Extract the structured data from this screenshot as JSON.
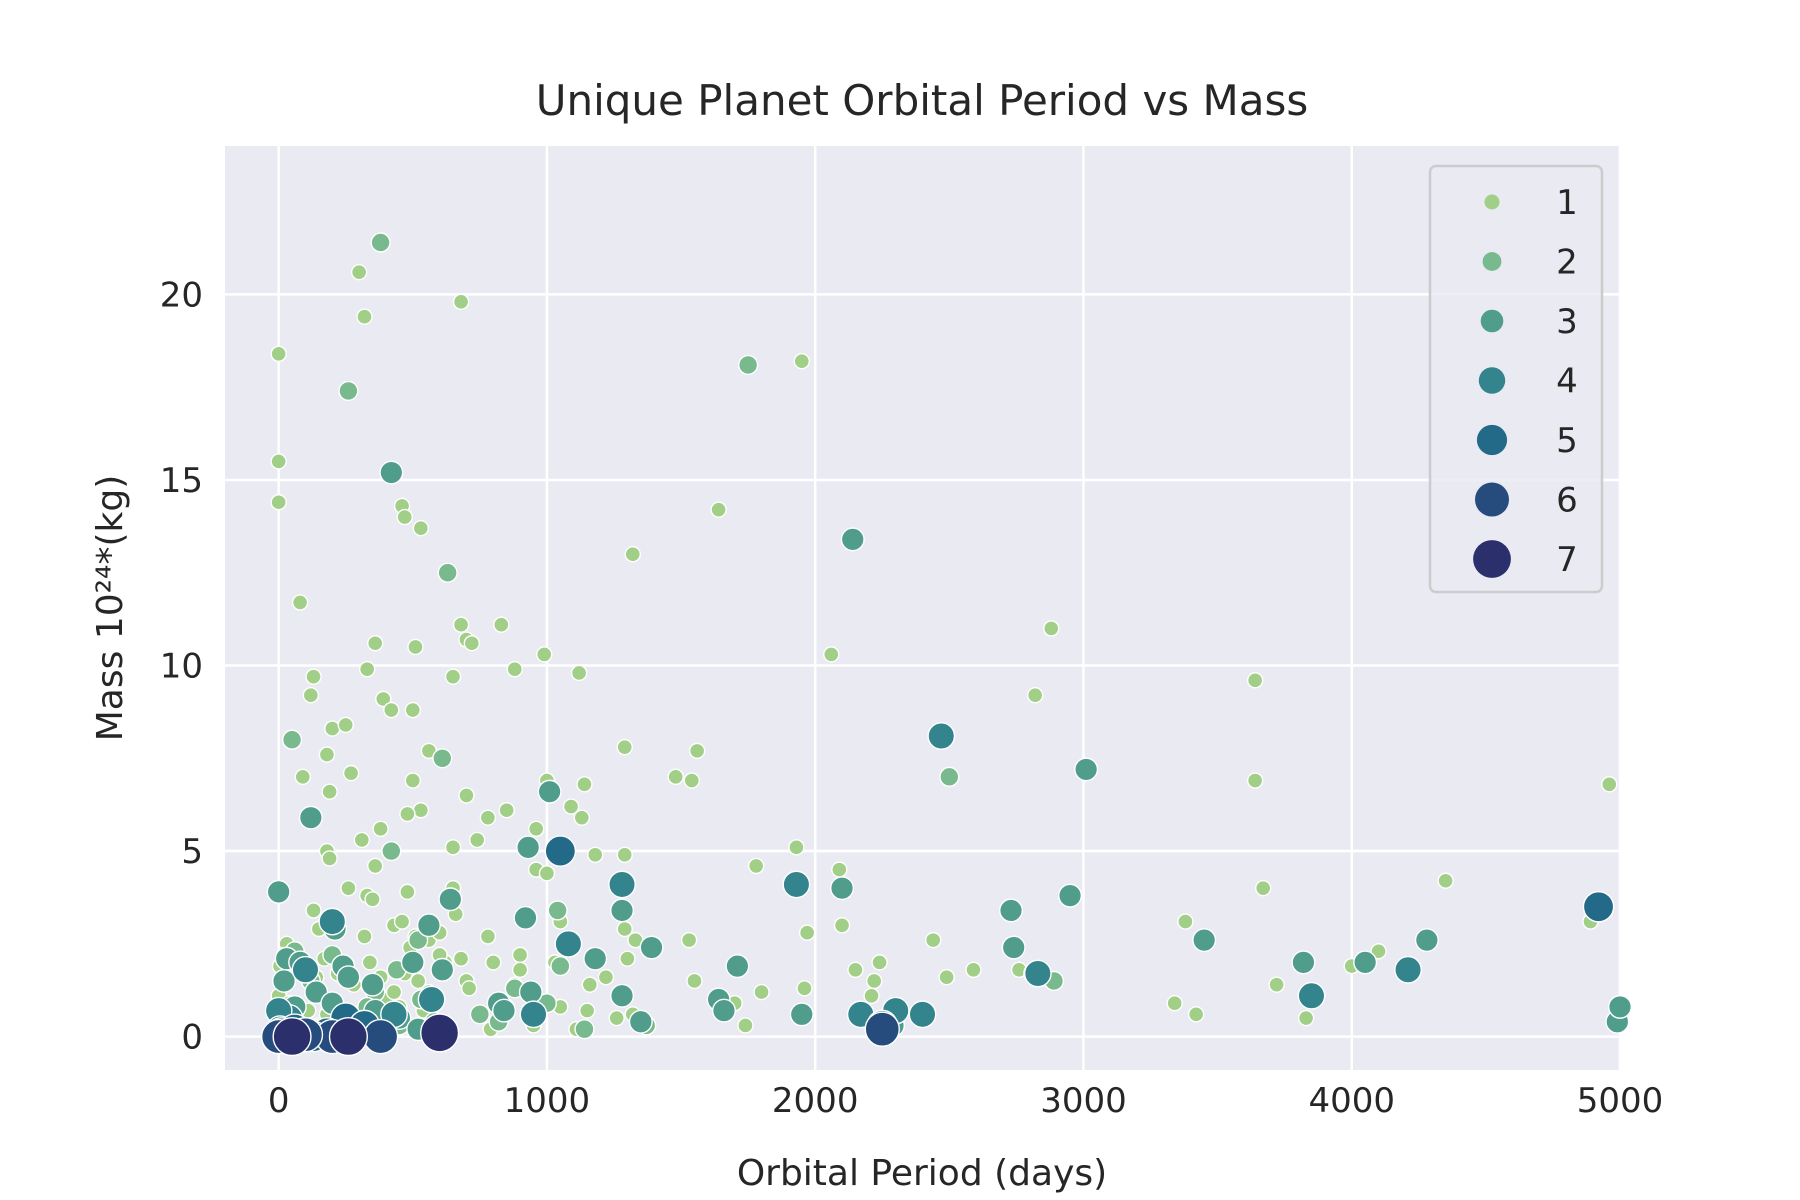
{
  "chart_data": {
    "type": "scatter",
    "title": "Unique Planet Orbital Period vs Mass",
    "xlabel": "Orbital Period (days)",
    "ylabel": "Mass 10²⁴*(kg)",
    "xlim": [
      -200,
      5000
    ],
    "ylim": [
      -0.9,
      24
    ],
    "xticks": [
      0,
      1000,
      2000,
      3000,
      4000,
      5000
    ],
    "xtick_labels": [
      "0",
      "1000",
      "2000",
      "3000",
      "4000",
      "5000"
    ],
    "yticks": [
      0,
      5,
      10,
      15,
      20
    ],
    "ytick_labels": [
      "0",
      "5",
      "10",
      "15",
      "20"
    ],
    "grid": true,
    "legend_position": "top-right",
    "hue_legend": [
      {
        "label": "1",
        "color": "#a1cf87"
      },
      {
        "label": "2",
        "color": "#78b98e"
      },
      {
        "label": "3",
        "color": "#509d8c"
      },
      {
        "label": "4",
        "color": "#33848c"
      },
      {
        "label": "5",
        "color": "#226a87"
      },
      {
        "label": "6",
        "color": "#264b7d"
      },
      {
        "label": "7",
        "color": "#2b2f6c"
      }
    ],
    "points": [
      [
        0,
        18.4,
        1
      ],
      [
        0,
        15.5,
        1
      ],
      [
        0,
        14.4,
        1
      ],
      [
        80,
        11.7,
        1
      ],
      [
        130,
        9.7,
        1
      ],
      [
        120,
        9.2,
        1
      ],
      [
        200,
        8.3,
        1
      ],
      [
        180,
        7.6,
        1
      ],
      [
        90,
        7.0,
        1
      ],
      [
        190,
        6.6,
        1
      ],
      [
        270,
        7.1,
        1
      ],
      [
        250,
        8.4,
        1
      ],
      [
        330,
        9.9,
        1
      ],
      [
        360,
        10.6,
        1
      ],
      [
        390,
        9.1,
        1
      ],
      [
        420,
        8.8,
        1
      ],
      [
        500,
        8.8,
        1
      ],
      [
        510,
        10.5,
        1
      ],
      [
        560,
        7.7,
        1
      ],
      [
        650,
        9.7,
        1
      ],
      [
        680,
        11.1,
        1
      ],
      [
        700,
        10.7,
        1
      ],
      [
        720,
        10.6,
        1
      ],
      [
        830,
        11.1,
        1
      ],
      [
        880,
        9.9,
        1
      ],
      [
        990,
        10.3,
        1
      ],
      [
        1120,
        9.8,
        1
      ],
      [
        300,
        20.6,
        1
      ],
      [
        320,
        19.4,
        1
      ],
      [
        680,
        19.8,
        1
      ],
      [
        460,
        14.3,
        1
      ],
      [
        470,
        14.0,
        1
      ],
      [
        530,
        13.7,
        1
      ],
      [
        1320,
        13.0,
        1
      ],
      [
        1640,
        14.2,
        1
      ],
      [
        1950,
        18.2,
        1
      ],
      [
        2060,
        10.3,
        1
      ],
      [
        2880,
        11.0,
        1
      ],
      [
        2820,
        9.2,
        1
      ],
      [
        3640,
        9.6,
        1
      ],
      [
        3640,
        6.9,
        1
      ],
      [
        4960,
        6.8,
        1
      ],
      [
        4350,
        4.2,
        1
      ],
      [
        3670,
        4.0,
        1
      ],
      [
        3380,
        3.1,
        1
      ],
      [
        3340,
        0.9,
        1
      ],
      [
        3420,
        0.6,
        1
      ],
      [
        3720,
        1.4,
        1
      ],
      [
        3830,
        0.5,
        1
      ],
      [
        4000,
        1.9,
        1
      ],
      [
        4100,
        2.3,
        1
      ],
      [
        4890,
        3.1,
        1
      ],
      [
        2440,
        2.6,
        1
      ],
      [
        2490,
        1.6,
        1
      ],
      [
        2590,
        1.8,
        1
      ],
      [
        2760,
        1.8,
        1
      ],
      [
        2100,
        3.0,
        1
      ],
      [
        2150,
        1.8,
        1
      ],
      [
        2220,
        1.5,
        1
      ],
      [
        2240,
        2.0,
        1
      ],
      [
        2210,
        1.1,
        1
      ],
      [
        1930,
        5.1,
        1
      ],
      [
        1960,
        1.3,
        1
      ],
      [
        1970,
        2.8,
        1
      ],
      [
        2090,
        4.5,
        1
      ],
      [
        1780,
        4.6,
        1
      ],
      [
        1800,
        1.2,
        1
      ],
      [
        1740,
        0.3,
        1
      ],
      [
        1700,
        0.9,
        1
      ],
      [
        1550,
        1.5,
        1
      ],
      [
        1530,
        2.6,
        1
      ],
      [
        1480,
        7.0,
        1
      ],
      [
        1540,
        6.9,
        1
      ],
      [
        1560,
        7.7,
        1
      ],
      [
        1290,
        7.8,
        1
      ],
      [
        1290,
        4.9,
        1
      ],
      [
        1180,
        4.9,
        1
      ],
      [
        1140,
        6.8,
        1
      ],
      [
        1090,
        6.2,
        1
      ],
      [
        1130,
        5.9,
        1
      ],
      [
        1000,
        6.9,
        1
      ],
      [
        960,
        5.6,
        1
      ],
      [
        960,
        4.5,
        1
      ],
      [
        1000,
        4.4,
        1
      ],
      [
        850,
        6.1,
        1
      ],
      [
        780,
        5.9,
        1
      ],
      [
        740,
        5.3,
        1
      ],
      [
        700,
        6.5,
        1
      ],
      [
        650,
        5.1,
        1
      ],
      [
        530,
        6.1,
        1
      ],
      [
        500,
        6.9,
        1
      ],
      [
        480,
        6.0,
        1
      ],
      [
        380,
        5.6,
        1
      ],
      [
        360,
        4.6,
        1
      ],
      [
        310,
        5.3,
        1
      ],
      [
        180,
        5.0,
        1
      ],
      [
        190,
        4.8,
        1
      ],
      [
        260,
        4.0,
        1
      ],
      [
        330,
        3.8,
        1
      ],
      [
        350,
        3.7,
        1
      ],
      [
        480,
        3.9,
        1
      ],
      [
        650,
        4.0,
        1
      ],
      [
        660,
        3.3,
        1
      ],
      [
        430,
        3.0,
        1
      ],
      [
        460,
        3.1,
        1
      ],
      [
        560,
        2.6,
        1
      ],
      [
        600,
        2.8,
        1
      ],
      [
        620,
        2.0,
        1
      ],
      [
        680,
        2.1,
        1
      ],
      [
        700,
        1.5,
        1
      ],
      [
        710,
        1.3,
        1
      ],
      [
        780,
        2.7,
        1
      ],
      [
        800,
        2.0,
        1
      ],
      [
        900,
        2.2,
        1
      ],
      [
        900,
        1.8,
        1
      ],
      [
        1050,
        3.1,
        1
      ],
      [
        1030,
        2.0,
        1
      ],
      [
        1050,
        0.8,
        1
      ],
      [
        1110,
        0.2,
        1
      ],
      [
        1150,
        0.7,
        1
      ],
      [
        1160,
        1.4,
        1
      ],
      [
        1220,
        1.6,
        1
      ],
      [
        1260,
        0.5,
        1
      ],
      [
        1290,
        2.9,
        1
      ],
      [
        1300,
        2.1,
        1
      ],
      [
        1320,
        0.6,
        1
      ],
      [
        1330,
        2.6,
        1
      ],
      [
        790,
        0.2,
        1
      ],
      [
        850,
        0.8,
        1
      ],
      [
        880,
        1.4,
        1
      ],
      [
        950,
        0.3,
        1
      ],
      [
        970,
        0.7,
        1
      ],
      [
        130,
        3.4,
        1
      ],
      [
        150,
        2.9,
        1
      ],
      [
        30,
        2.5,
        1
      ],
      [
        20,
        2.2,
        1
      ],
      [
        10,
        1.5,
        1
      ],
      [
        0,
        1.1,
        1
      ],
      [
        0,
        0.4,
        1
      ],
      [
        40,
        0.9,
        1
      ],
      [
        110,
        0.7,
        1
      ],
      [
        140,
        1.6,
        1
      ],
      [
        170,
        2.1,
        1
      ],
      [
        220,
        1.7,
        1
      ],
      [
        280,
        1.4,
        1
      ],
      [
        300,
        0.6,
        1
      ],
      [
        320,
        2.7,
        1
      ],
      [
        340,
        2.0,
        1
      ],
      [
        380,
        1.6,
        1
      ],
      [
        400,
        1.0,
        1
      ],
      [
        430,
        1.2,
        1
      ],
      [
        450,
        0.8,
        1
      ],
      [
        470,
        1.7,
        1
      ],
      [
        490,
        2.4,
        1
      ],
      [
        510,
        2.7,
        1
      ],
      [
        520,
        1.5,
        1
      ],
      [
        540,
        0.7,
        1
      ],
      [
        560,
        1.2,
        1
      ],
      [
        580,
        0.9,
        1
      ],
      [
        600,
        2.2,
        1
      ],
      [
        250,
        0.2,
        1
      ],
      [
        220,
        0.4,
        1
      ],
      [
        180,
        0.6,
        1
      ],
      [
        150,
        0.3,
        1
      ],
      [
        60,
        0.5,
        1
      ],
      [
        90,
        1.8,
        1
      ],
      [
        5,
        1.9,
        1
      ],
      [
        50,
        8.0,
        2
      ],
      [
        610,
        7.5,
        2
      ],
      [
        630,
        12.5,
        2
      ],
      [
        260,
        17.4,
        2
      ],
      [
        380,
        21.4,
        2
      ],
      [
        1750,
        18.1,
        2
      ],
      [
        2500,
        7.0,
        2
      ],
      [
        2890,
        1.5,
        2
      ],
      [
        420,
        5.0,
        2
      ],
      [
        1040,
        3.4,
        2
      ],
      [
        1000,
        0.9,
        2
      ],
      [
        1050,
        1.9,
        2
      ],
      [
        200,
        2.2,
        2
      ],
      [
        290,
        0.5,
        2
      ],
      [
        360,
        1.2,
        2
      ],
      [
        440,
        1.8,
        2
      ],
      [
        520,
        2.6,
        2
      ],
      [
        580,
        0.4,
        2
      ],
      [
        750,
        0.6,
        2
      ],
      [
        880,
        1.3,
        2
      ],
      [
        120,
        1.5,
        2
      ],
      [
        60,
        2.3,
        2
      ],
      [
        100,
        0.2,
        2
      ],
      [
        330,
        0.8,
        2
      ],
      [
        450,
        0.3,
        2
      ],
      [
        530,
        1.0,
        2
      ],
      [
        820,
        0.4,
        2
      ],
      [
        1140,
        0.2,
        2
      ],
      [
        1370,
        0.3,
        2
      ],
      [
        420,
        15.2,
        3
      ],
      [
        2140,
        13.4,
        3
      ],
      [
        3010,
        7.2,
        3
      ],
      [
        120,
        5.9,
        3
      ],
      [
        930,
        5.1,
        3
      ],
      [
        1010,
        6.6,
        3
      ],
      [
        920,
        3.2,
        3
      ],
      [
        1390,
        2.4,
        3
      ],
      [
        1180,
        2.1,
        3
      ],
      [
        1710,
        1.9,
        3
      ],
      [
        1640,
        1.0,
        3
      ],
      [
        1660,
        0.7,
        3
      ],
      [
        1950,
        0.6,
        3
      ],
      [
        2100,
        4.0,
        3
      ],
      [
        2730,
        3.4,
        3
      ],
      [
        2740,
        2.4,
        3
      ],
      [
        2950,
        3.8,
        3
      ],
      [
        3450,
        2.6,
        3
      ],
      [
        3820,
        2.0,
        3
      ],
      [
        4050,
        2.0,
        3
      ],
      [
        4280,
        2.6,
        3
      ],
      [
        4990,
        0.4,
        3
      ],
      [
        5000,
        0.8,
        3
      ],
      [
        2290,
        0.3,
        3
      ],
      [
        0,
        3.9,
        3
      ],
      [
        30,
        2.1,
        3
      ],
      [
        210,
        2.9,
        3
      ],
      [
        240,
        1.9,
        3
      ],
      [
        140,
        1.2,
        3
      ],
      [
        350,
        1.4,
        3
      ],
      [
        560,
        3.0,
        3
      ],
      [
        640,
        3.7,
        3
      ],
      [
        610,
        1.8,
        3
      ],
      [
        820,
        0.9,
        3
      ],
      [
        940,
        1.2,
        3
      ],
      [
        840,
        0.7,
        3
      ],
      [
        450,
        0.5,
        3
      ],
      [
        360,
        0.7,
        3
      ],
      [
        500,
        2.0,
        3
      ],
      [
        260,
        1.6,
        3
      ],
      [
        520,
        0.2,
        3
      ],
      [
        20,
        1.5,
        3
      ],
      [
        80,
        2.0,
        3
      ],
      [
        60,
        0.8,
        3
      ],
      [
        200,
        0.9,
        3
      ],
      [
        1280,
        3.4,
        3
      ],
      [
        1350,
        0.4,
        3
      ],
      [
        1280,
        1.1,
        3
      ],
      [
        2820,
        1.7,
        3
      ],
      [
        2470,
        8.1,
        4
      ],
      [
        1930,
        4.1,
        4
      ],
      [
        1280,
        4.1,
        4
      ],
      [
        4210,
        1.8,
        4
      ],
      [
        2170,
        0.6,
        4
      ],
      [
        2300,
        0.7,
        4
      ],
      [
        2400,
        0.6,
        4
      ],
      [
        1080,
        2.5,
        4
      ],
      [
        950,
        0.6,
        4
      ],
      [
        570,
        1.0,
        4
      ],
      [
        430,
        0.6,
        4
      ],
      [
        200,
        3.1,
        4
      ],
      [
        100,
        1.8,
        4
      ],
      [
        40,
        0.5,
        4
      ],
      [
        150,
        0.1,
        4
      ],
      [
        250,
        0.3,
        4
      ],
      [
        0,
        0.7,
        4
      ],
      [
        5,
        0.2,
        4
      ],
      [
        3850,
        1.1,
        4
      ],
      [
        2830,
        1.7,
        4
      ],
      [
        1050,
        5.0,
        5
      ],
      [
        4920,
        3.5,
        5
      ],
      [
        250,
        0.5,
        5
      ],
      [
        60,
        0.2,
        5
      ],
      [
        10,
        0.1,
        5
      ],
      [
        180,
        0.1,
        5
      ],
      [
        320,
        0.3,
        5
      ],
      [
        130,
        0.0,
        5
      ],
      [
        2250,
        0.3,
        5
      ],
      [
        600,
        0.1,
        6
      ],
      [
        2250,
        0.2,
        6
      ],
      [
        200,
        0.0,
        6
      ],
      [
        50,
        0.0,
        6
      ],
      [
        100,
        0.05,
        6
      ],
      [
        0,
        0.0,
        6
      ],
      [
        260,
        0.0,
        6
      ],
      [
        380,
        0.0,
        6
      ],
      [
        50,
        0.0,
        7
      ],
      [
        260,
        0.0,
        7
      ],
      [
        600,
        0.1,
        7
      ]
    ]
  }
}
